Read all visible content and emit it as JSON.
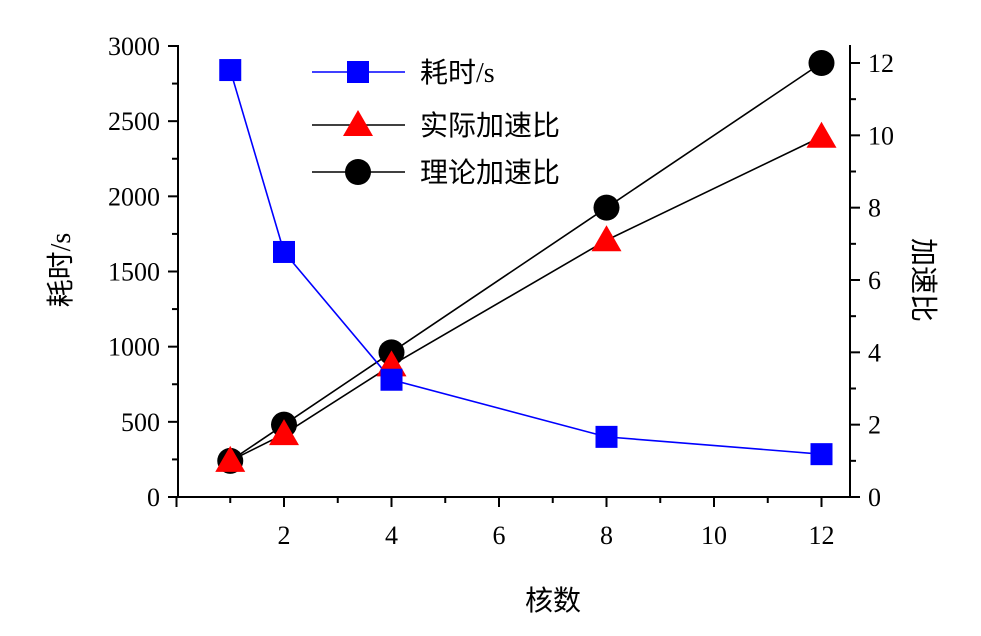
{
  "chart_data": {
    "type": "line",
    "title": "",
    "xlabel": "核数",
    "ylabel_left": "耗时/s",
    "ylabel_right": "加速比",
    "x": [
      1,
      2,
      4,
      8,
      12
    ],
    "xlim": [
      0,
      12.5
    ],
    "ylim_left": [
      0,
      3000
    ],
    "ylim_right": [
      0,
      12.5
    ],
    "x_ticks": [
      2,
      4,
      6,
      8,
      10,
      12
    ],
    "y_left_ticks": [
      0,
      500,
      1000,
      1500,
      2000,
      2500,
      3000
    ],
    "y_right_ticks": [
      0,
      2,
      4,
      6,
      8,
      10,
      12
    ],
    "legend_position": "top-center",
    "grid": false,
    "series": [
      {
        "name": "耗时/s",
        "axis": "left",
        "marker": "square",
        "color": "#0000ff",
        "line_color": "#0000ff",
        "values": [
          2840,
          1630,
          780,
          400,
          285
        ]
      },
      {
        "name": "实际加速比",
        "axis": "right",
        "marker": "triangle",
        "color": "#ff0000",
        "line_color": "#000000",
        "values": [
          1.0,
          1.74,
          3.64,
          7.1,
          9.96
        ]
      },
      {
        "name": "理论加速比",
        "axis": "right",
        "marker": "circle",
        "color": "#000000",
        "line_color": "#000000",
        "values": [
          1,
          2,
          4,
          8,
          12
        ]
      }
    ]
  }
}
